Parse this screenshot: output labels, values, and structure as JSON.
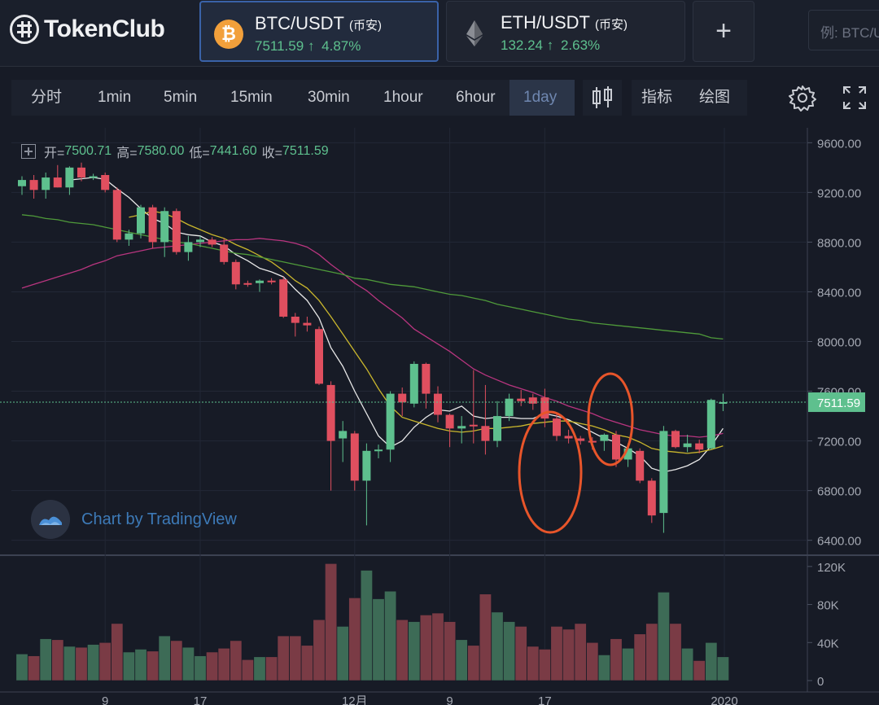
{
  "app": {
    "name": "TokenClub"
  },
  "pairs": [
    {
      "name": "BTC/USDT",
      "exchange": "(币安)",
      "price": "7511.59",
      "arrow": "↑",
      "change": "4.87%",
      "icon": "bitcoin-icon",
      "active": true
    },
    {
      "name": "ETH/USDT",
      "exchange": "(币安)",
      "price": "132.24",
      "arrow": "↑",
      "change": "2.63%",
      "icon": "ethereum-icon",
      "active": false
    }
  ],
  "add_button": {
    "icon": "plus-icon",
    "label": "+"
  },
  "search": {
    "placeholder": "例: BTC/US"
  },
  "toolbar": {
    "intervals": [
      "分时",
      "1min",
      "5min",
      "15min",
      "30min",
      "1hour",
      "6hour",
      "1day"
    ],
    "active_interval": "1day",
    "indicators_label": "指标",
    "drawing_label": "绘图",
    "icons": [
      "candlestick-icon",
      "gear-icon",
      "fullscreen-icon"
    ]
  },
  "legend": {
    "open_label": "开=",
    "open": "7500.71",
    "high_label": "高=",
    "high": "7580.00",
    "low_label": "低=",
    "low": "7441.60",
    "close_label": "收=",
    "close": "7511.59"
  },
  "watermark": "Chart by TradingView",
  "colors": {
    "up": "#5ec08e",
    "down": "#e04f5f",
    "accent": "#3a62a8",
    "annotation": "#e8552a",
    "ma_white": "#e8e8e8",
    "ma_yellow": "#c9b62d",
    "ma_magenta": "#b8357f",
    "ma_green": "#4f9a3a"
  },
  "chart_data": {
    "type": "candlestick",
    "price_ticks": [
      "9600.00",
      "9200.00",
      "8800.00",
      "8400.00",
      "8000.00",
      "7600.00",
      "7200.00",
      "6800.00",
      "6400.00"
    ],
    "ylim": [
      6280,
      9720
    ],
    "current_price_label": "7511.59",
    "volume_ticks": [
      "120K",
      "80K",
      "40K",
      "0"
    ],
    "volume_ylim": [
      0,
      125000
    ],
    "x_ticks": [
      "9",
      "17",
      "12月",
      "9",
      "17",
      "2020"
    ],
    "candles": [
      {
        "o": 9250,
        "h": 9330,
        "l": 9180,
        "c": 9300,
        "v": 28000
      },
      {
        "o": 9300,
        "h": 9340,
        "l": 9150,
        "c": 9220,
        "v": 26000
      },
      {
        "o": 9220,
        "h": 9360,
        "l": 9150,
        "c": 9320,
        "v": 44000
      },
      {
        "o": 9320,
        "h": 9420,
        "l": 9240,
        "c": 9240,
        "v": 43000
      },
      {
        "o": 9240,
        "h": 9410,
        "l": 9180,
        "c": 9400,
        "v": 36000
      },
      {
        "o": 9400,
        "h": 9440,
        "l": 9290,
        "c": 9320,
        "v": 35000
      },
      {
        "o": 9320,
        "h": 9350,
        "l": 9300,
        "c": 9330,
        "v": 38000
      },
      {
        "o": 9340,
        "h": 9360,
        "l": 9200,
        "c": 9220,
        "v": 40000
      },
      {
        "o": 9220,
        "h": 9240,
        "l": 8800,
        "c": 8820,
        "v": 60000
      },
      {
        "o": 8820,
        "h": 8900,
        "l": 8770,
        "c": 8870,
        "v": 30000
      },
      {
        "o": 8870,
        "h": 9100,
        "l": 8830,
        "c": 9080,
        "v": 33000
      },
      {
        "o": 9080,
        "h": 9100,
        "l": 8750,
        "c": 8800,
        "v": 31000
      },
      {
        "o": 8800,
        "h": 9080,
        "l": 8680,
        "c": 9050,
        "v": 47000
      },
      {
        "o": 9050,
        "h": 9070,
        "l": 8700,
        "c": 8720,
        "v": 42000
      },
      {
        "o": 8720,
        "h": 8850,
        "l": 8650,
        "c": 8800,
        "v": 35000
      },
      {
        "o": 8800,
        "h": 8850,
        "l": 8760,
        "c": 8820,
        "v": 26000
      },
      {
        "o": 8820,
        "h": 8840,
        "l": 8760,
        "c": 8780,
        "v": 30000
      },
      {
        "o": 8780,
        "h": 8830,
        "l": 8620,
        "c": 8640,
        "v": 34000
      },
      {
        "o": 8640,
        "h": 8660,
        "l": 8420,
        "c": 8460,
        "v": 42000
      },
      {
        "o": 8470,
        "h": 8490,
        "l": 8440,
        "c": 8460,
        "v": 22000
      },
      {
        "o": 8470,
        "h": 8500,
        "l": 8400,
        "c": 8490,
        "v": 25000
      },
      {
        "o": 8490,
        "h": 8510,
        "l": 8460,
        "c": 8480,
        "v": 25000
      },
      {
        "o": 8500,
        "h": 8520,
        "l": 8190,
        "c": 8200,
        "v": 47000
      },
      {
        "o": 8200,
        "h": 8230,
        "l": 8040,
        "c": 8150,
        "v": 47000
      },
      {
        "o": 8150,
        "h": 8200,
        "l": 8080,
        "c": 8130,
        "v": 37000
      },
      {
        "o": 8100,
        "h": 8120,
        "l": 7650,
        "c": 7660,
        "v": 64000
      },
      {
        "o": 7650,
        "h": 7680,
        "l": 6800,
        "c": 7200,
        "v": 123000
      },
      {
        "o": 7220,
        "h": 7360,
        "l": 7030,
        "c": 7280,
        "v": 57000
      },
      {
        "o": 7260,
        "h": 7280,
        "l": 6800,
        "c": 6880,
        "v": 87000
      },
      {
        "o": 6880,
        "h": 7180,
        "l": 6520,
        "c": 7120,
        "v": 116000
      },
      {
        "o": 7120,
        "h": 7170,
        "l": 7060,
        "c": 7130,
        "v": 86000
      },
      {
        "o": 7130,
        "h": 7600,
        "l": 7030,
        "c": 7580,
        "v": 94000
      },
      {
        "o": 7580,
        "h": 7630,
        "l": 7400,
        "c": 7510,
        "v": 64000
      },
      {
        "o": 7500,
        "h": 7840,
        "l": 7470,
        "c": 7820,
        "v": 62000
      },
      {
        "o": 7820,
        "h": 7830,
        "l": 7460,
        "c": 7580,
        "v": 69000
      },
      {
        "o": 7580,
        "h": 7640,
        "l": 7350,
        "c": 7410,
        "v": 71000
      },
      {
        "o": 7410,
        "h": 7420,
        "l": 7150,
        "c": 7300,
        "v": 62000
      },
      {
        "o": 7300,
        "h": 7400,
        "l": 7180,
        "c": 7320,
        "v": 43000
      },
      {
        "o": 7330,
        "h": 7770,
        "l": 7180,
        "c": 7320,
        "v": 37000
      },
      {
        "o": 7320,
        "h": 7650,
        "l": 7090,
        "c": 7200,
        "v": 91000
      },
      {
        "o": 7200,
        "h": 7520,
        "l": 7150,
        "c": 7400,
        "v": 72000
      },
      {
        "o": 7400,
        "h": 7580,
        "l": 7360,
        "c": 7540,
        "v": 62000
      },
      {
        "o": 7540,
        "h": 7610,
        "l": 7480,
        "c": 7520,
        "v": 57000
      },
      {
        "o": 7550,
        "h": 7580,
        "l": 7450,
        "c": 7500,
        "v": 36000
      },
      {
        "o": 7550,
        "h": 7620,
        "l": 7310,
        "c": 7380,
        "v": 33000
      },
      {
        "o": 7380,
        "h": 7430,
        "l": 7200,
        "c": 7240,
        "v": 57000
      },
      {
        "o": 7240,
        "h": 7290,
        "l": 7180,
        "c": 7220,
        "v": 54000
      },
      {
        "o": 7220,
        "h": 7240,
        "l": 7170,
        "c": 7200,
        "v": 60000
      },
      {
        "o": 7200,
        "h": 7230,
        "l": 7130,
        "c": 7190,
        "v": 40000
      },
      {
        "o": 7200,
        "h": 7260,
        "l": 7120,
        "c": 7250,
        "v": 27000
      },
      {
        "o": 7250,
        "h": 7280,
        "l": 6990,
        "c": 7050,
        "v": 44000
      },
      {
        "o": 7050,
        "h": 7180,
        "l": 6990,
        "c": 7140,
        "v": 34000
      },
      {
        "o": 7120,
        "h": 7140,
        "l": 6860,
        "c": 6880,
        "v": 49000
      },
      {
        "o": 6880,
        "h": 6900,
        "l": 6540,
        "c": 6600,
        "v": 60000
      },
      {
        "o": 6620,
        "h": 7320,
        "l": 6460,
        "c": 7280,
        "v": 93000
      },
      {
        "o": 7280,
        "h": 7290,
        "l": 7140,
        "c": 7150,
        "v": 60000
      },
      {
        "o": 7150,
        "h": 7250,
        "l": 7110,
        "c": 7180,
        "v": 34000
      },
      {
        "o": 7180,
        "h": 7210,
        "l": 7100,
        "c": 7130,
        "v": 21000
      },
      {
        "o": 7140,
        "h": 7540,
        "l": 7130,
        "c": 7530,
        "v": 40000
      },
      {
        "o": 7500,
        "h": 7580,
        "l": 7440,
        "c": 7512,
        "v": 25000
      }
    ],
    "moving_averages": [
      {
        "color": "#e8e8e8",
        "values": [
          null,
          null,
          null,
          null,
          9300,
          9310,
          9320,
          9305,
          9230,
          9160,
          9070,
          8990,
          8950,
          8880,
          8860,
          8850,
          8800,
          8770,
          8700,
          8650,
          8590,
          8560,
          8520,
          8420,
          8330,
          8190,
          7950,
          7800,
          7600,
          7420,
          7240,
          7150,
          7200,
          7310,
          7390,
          7450,
          7440,
          7480,
          7400,
          7380,
          7390,
          7390,
          7380,
          7380,
          7420,
          7400,
          7370,
          7320,
          7270,
          7220,
          7190,
          7140,
          7080,
          6980,
          6950,
          6970,
          7000,
          7050,
          7160,
          7300
        ]
      },
      {
        "color": "#c9b62d",
        "values": [
          null,
          null,
          null,
          null,
          null,
          null,
          null,
          null,
          null,
          9000,
          9020,
          9050,
          9030,
          8990,
          8940,
          8900,
          8860,
          8830,
          8780,
          8740,
          8690,
          8640,
          8570,
          8490,
          8430,
          8330,
          8200,
          8060,
          7920,
          7780,
          7620,
          7480,
          7390,
          7360,
          7330,
          7300,
          7280,
          7270,
          7280,
          7300,
          7300,
          7310,
          7320,
          7340,
          7350,
          7360,
          7360,
          7340,
          7320,
          7290,
          7250,
          7230,
          7190,
          7140,
          7120,
          7110,
          7100,
          7110,
          7130,
          7160
        ]
      },
      {
        "color": "#b8357f",
        "values": [
          8430,
          8460,
          8490,
          8520,
          8550,
          8580,
          8620,
          8650,
          8690,
          8710,
          8730,
          8750,
          8760,
          8770,
          8780,
          8790,
          8800,
          8810,
          8820,
          8820,
          8830,
          8820,
          8810,
          8790,
          8760,
          8700,
          8620,
          8550,
          8470,
          8410,
          8330,
          8260,
          8190,
          8100,
          8040,
          7980,
          7920,
          7850,
          7780,
          7730,
          7690,
          7650,
          7620,
          7590,
          7550,
          7520,
          7480,
          7450,
          7420,
          7380,
          7350,
          7320,
          7290,
          7270,
          7250,
          7240,
          7240,
          7230,
          7240,
          7260
        ]
      },
      {
        "color": "#4f9a3a",
        "values": [
          9020,
          9010,
          8990,
          8980,
          8960,
          8950,
          8940,
          8920,
          8900,
          8880,
          8860,
          8840,
          8820,
          8800,
          8790,
          8770,
          8750,
          8730,
          8710,
          8700,
          8680,
          8660,
          8640,
          8620,
          8600,
          8580,
          8560,
          8540,
          8510,
          8500,
          8480,
          8460,
          8450,
          8440,
          8420,
          8400,
          8380,
          8370,
          8350,
          8330,
          8300,
          8280,
          8260,
          8240,
          8220,
          8200,
          8180,
          8170,
          8150,
          8140,
          8130,
          8120,
          8110,
          8100,
          8090,
          8080,
          8070,
          8060,
          8030,
          8020
        ]
      }
    ],
    "annotations": [
      "circle",
      "circle"
    ]
  }
}
